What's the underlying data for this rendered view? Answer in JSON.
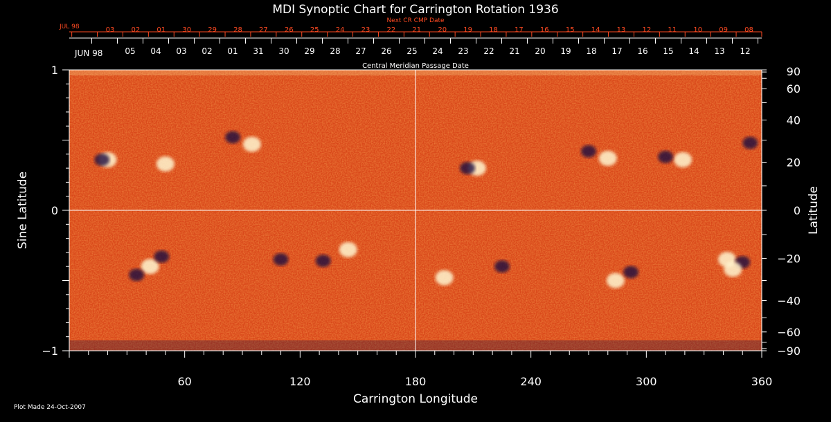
{
  "chart_data": {
    "type": "heatmap",
    "title": "MDI Synoptic Chart for Carrington Rotation 1936",
    "xlabel": "Carrington Longitude",
    "ylabel_left": "Sine Latitude",
    "ylabel_right": "Latitude",
    "xlim": [
      0,
      360
    ],
    "ylim_sine": [
      -1,
      1
    ],
    "x_ticks": [
      "60",
      "120",
      "180",
      "240",
      "300",
      "360"
    ],
    "x_tick_values": [
      60,
      120,
      180,
      240,
      300,
      360
    ],
    "y_ticks_left": [
      "1",
      "0",
      "−1"
    ],
    "y_tick_values_left": [
      1,
      0,
      -1
    ],
    "y_ticks_right": [
      "90",
      "60",
      "40",
      "20",
      "0",
      "−20",
      "−40",
      "−60",
      "−90"
    ],
    "y_tick_values_right": [
      90,
      60,
      40,
      20,
      0,
      -20,
      -40,
      -60,
      -90
    ],
    "cmp_axis": {
      "label": "Central Meridian Passage Date",
      "month_label": "JUN 98",
      "dates": [
        "05",
        "04",
        "03",
        "02",
        "01",
        "31",
        "30",
        "29",
        "28",
        "27",
        "26",
        "25",
        "24",
        "23",
        "22",
        "21",
        "20",
        "19",
        "18",
        "17",
        "16",
        "15",
        "14",
        "13",
        "12"
      ]
    },
    "next_cmp_axis": {
      "label": "Next CR CMP Date",
      "month_label": "JUL 98",
      "dates": [
        "03",
        "02",
        "01",
        "30",
        "29",
        "28",
        "27",
        "26",
        "25",
        "24",
        "23",
        "22",
        "21",
        "20",
        "19",
        "18",
        "17",
        "16",
        "15",
        "14",
        "13",
        "12",
        "11",
        "10",
        "09",
        "08"
      ]
    },
    "grid": "center cross at longitude 180 and latitude 0",
    "colors": {
      "background": "#000000",
      "field": "#e85a1c",
      "positive": "#fff6d0",
      "negative": "#1a1040",
      "axis_red": "#ff4a22",
      "axis_white": "#ffffff"
    },
    "active_regions": [
      {
        "lon": 20,
        "sinlat": 0.36,
        "polarity": "positive"
      },
      {
        "lon": 17,
        "sinlat": 0.36,
        "polarity": "negative"
      },
      {
        "lon": 50,
        "sinlat": 0.33,
        "polarity": "positive"
      },
      {
        "lon": 95,
        "sinlat": 0.47,
        "polarity": "positive"
      },
      {
        "lon": 85,
        "sinlat": 0.52,
        "polarity": "negative"
      },
      {
        "lon": 212,
        "sinlat": 0.3,
        "polarity": "positive"
      },
      {
        "lon": 207,
        "sinlat": 0.3,
        "polarity": "negative"
      },
      {
        "lon": 280,
        "sinlat": 0.37,
        "polarity": "positive"
      },
      {
        "lon": 270,
        "sinlat": 0.42,
        "polarity": "negative"
      },
      {
        "lon": 319,
        "sinlat": 0.36,
        "polarity": "positive"
      },
      {
        "lon": 310,
        "sinlat": 0.38,
        "polarity": "negative"
      },
      {
        "lon": 354,
        "sinlat": 0.48,
        "polarity": "negative"
      },
      {
        "lon": 42,
        "sinlat": -0.4,
        "polarity": "positive"
      },
      {
        "lon": 48,
        "sinlat": -0.33,
        "polarity": "negative"
      },
      {
        "lon": 35,
        "sinlat": -0.46,
        "polarity": "negative"
      },
      {
        "lon": 110,
        "sinlat": -0.35,
        "polarity": "negative"
      },
      {
        "lon": 132,
        "sinlat": -0.36,
        "polarity": "negative"
      },
      {
        "lon": 145,
        "sinlat": -0.28,
        "polarity": "positive"
      },
      {
        "lon": 195,
        "sinlat": -0.48,
        "polarity": "positive"
      },
      {
        "lon": 225,
        "sinlat": -0.4,
        "polarity": "negative"
      },
      {
        "lon": 284,
        "sinlat": -0.5,
        "polarity": "positive"
      },
      {
        "lon": 292,
        "sinlat": -0.44,
        "polarity": "negative"
      },
      {
        "lon": 342,
        "sinlat": -0.35,
        "polarity": "positive"
      },
      {
        "lon": 350,
        "sinlat": -0.37,
        "polarity": "negative"
      },
      {
        "lon": 345,
        "sinlat": -0.42,
        "polarity": "positive"
      }
    ]
  },
  "footer": {
    "plot_made": "Plot Made 24-Oct-2007"
  }
}
